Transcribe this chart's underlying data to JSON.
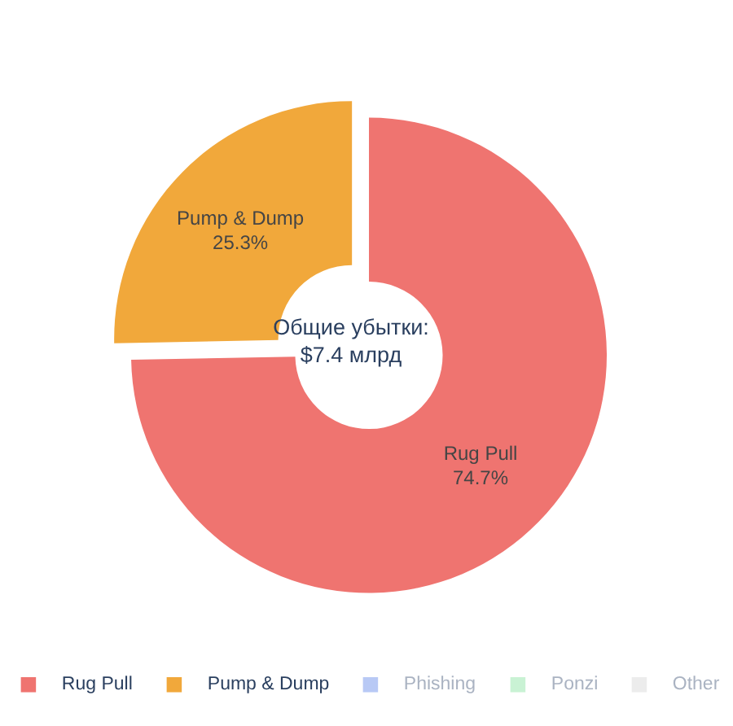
{
  "chart_data": {
    "type": "donut",
    "categories": [
      "Rug Pull",
      "Pump & Dump",
      "Phishing",
      "Ponzi",
      "Other"
    ],
    "values": [
      74.7,
      25.3,
      0,
      0,
      0
    ],
    "colors": [
      "#ef7470",
      "#f1a83b",
      "#b8c9f5",
      "#c9f2d4",
      "#ececec"
    ],
    "value_labels": [
      "74.7%",
      "25.3%",
      null,
      null,
      null
    ],
    "annotations": [
      "Общие убытки:\n$7.4 млрд"
    ],
    "legend": "bottom"
  }
}
